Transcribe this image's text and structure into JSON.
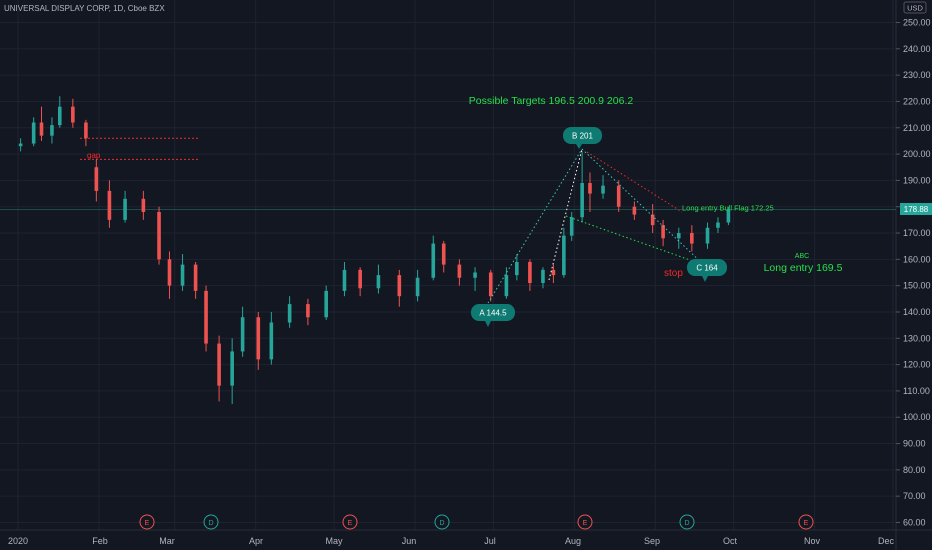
{
  "header": {
    "symbol_title": "UNIVERSAL DISPLAY CORP, 1D, Cboe BZX",
    "currency_label": "USD"
  },
  "price_axis": {
    "ticks": [
      "250.00",
      "240.00",
      "230.00",
      "220.00",
      "210.00",
      "200.00",
      "190.00",
      "180.00",
      "170.00",
      "160.00",
      "150.00",
      "140.00",
      "130.00",
      "120.00",
      "110.00",
      "100.00",
      "90.00",
      "80.00",
      "70.00",
      "60.00"
    ],
    "last_price_label": "178.88",
    "last_price": 178.88
  },
  "time_axis": {
    "labels": [
      "2020",
      "Feb",
      "Mar",
      "Apr",
      "May",
      "Jun",
      "Jul",
      "Aug",
      "Sep",
      "Oct",
      "Nov",
      "Dec"
    ]
  },
  "events": [
    {
      "letter": "E",
      "type": "earnings",
      "month": "Feb"
    },
    {
      "letter": "D",
      "type": "dividend",
      "month": "Mar"
    },
    {
      "letter": "E",
      "type": "earnings",
      "month": "May"
    },
    {
      "letter": "D",
      "type": "dividend",
      "month": "Jun"
    },
    {
      "letter": "E",
      "type": "earnings",
      "month": "Aug"
    },
    {
      "letter": "D",
      "type": "dividend",
      "month": "Sep"
    },
    {
      "letter": "E",
      "type": "earnings",
      "month": "Nov"
    }
  ],
  "annotations": {
    "targets_text": "Possible Targets  196.5  200.9  206.2",
    "gap_label": "gap",
    "point_a": "A 144.5",
    "point_b": "B 201",
    "point_c": "C  164",
    "stop_label": "stop",
    "bull_flag_label": "Long entry Bull Flag  172.25",
    "abc_label": "ABC",
    "long_entry_label": "Long entry 169.5"
  },
  "colors": {
    "background": "#131722",
    "up": "#26a69a",
    "down": "#ef5350",
    "annotation_green": "#26e04a",
    "annotation_red": "#ef2b2b",
    "callout_teal": "#0e7a72",
    "dotted_teal": "#3ec6c0"
  },
  "chart_data": {
    "type": "candlestick",
    "title": "UNIVERSAL DISPLAY CORP, 1D, Cboe BZX",
    "ylim": [
      57,
      255
    ],
    "y_unit": "USD",
    "x_range": [
      "2020-01-01",
      "2020-12-06"
    ],
    "candles": [
      {
        "date": "2020-01-02",
        "o": 203,
        "h": 206,
        "l": 201,
        "c": 204
      },
      {
        "date": "2020-01-07",
        "o": 204,
        "h": 214,
        "l": 203,
        "c": 212
      },
      {
        "date": "2020-01-10",
        "o": 212,
        "h": 218,
        "l": 205,
        "c": 207
      },
      {
        "date": "2020-01-14",
        "o": 207,
        "h": 214,
        "l": 204,
        "c": 211
      },
      {
        "date": "2020-01-17",
        "o": 211,
        "h": 222,
        "l": 210,
        "c": 218
      },
      {
        "date": "2020-01-22",
        "o": 218,
        "h": 221,
        "l": 210,
        "c": 212
      },
      {
        "date": "2020-01-27",
        "o": 212,
        "h": 213,
        "l": 203,
        "c": 206
      },
      {
        "date": "2020-01-31",
        "o": 195,
        "h": 198,
        "l": 182,
        "c": 186
      },
      {
        "date": "2020-02-05",
        "o": 186,
        "h": 190,
        "l": 172,
        "c": 175
      },
      {
        "date": "2020-02-11",
        "o": 175,
        "h": 186,
        "l": 174,
        "c": 183
      },
      {
        "date": "2020-02-18",
        "o": 183,
        "h": 186,
        "l": 175,
        "c": 178
      },
      {
        "date": "2020-02-24",
        "o": 178,
        "h": 180,
        "l": 158,
        "c": 160
      },
      {
        "date": "2020-02-28",
        "o": 160,
        "h": 163,
        "l": 145,
        "c": 150
      },
      {
        "date": "2020-03-04",
        "o": 150,
        "h": 162,
        "l": 148,
        "c": 158
      },
      {
        "date": "2020-03-09",
        "o": 158,
        "h": 159,
        "l": 145,
        "c": 148
      },
      {
        "date": "2020-03-13",
        "o": 148,
        "h": 150,
        "l": 125,
        "c": 128
      },
      {
        "date": "2020-03-18",
        "o": 128,
        "h": 131,
        "l": 106,
        "c": 112
      },
      {
        "date": "2020-03-23",
        "o": 112,
        "h": 130,
        "l": 105,
        "c": 125
      },
      {
        "date": "2020-03-27",
        "o": 125,
        "h": 142,
        "l": 123,
        "c": 138
      },
      {
        "date": "2020-04-02",
        "o": 138,
        "h": 140,
        "l": 118,
        "c": 122
      },
      {
        "date": "2020-04-07",
        "o": 122,
        "h": 140,
        "l": 120,
        "c": 136
      },
      {
        "date": "2020-04-14",
        "o": 136,
        "h": 146,
        "l": 134,
        "c": 143
      },
      {
        "date": "2020-04-21",
        "o": 143,
        "h": 145,
        "l": 135,
        "c": 138
      },
      {
        "date": "2020-04-28",
        "o": 138,
        "h": 150,
        "l": 137,
        "c": 148
      },
      {
        "date": "2020-05-05",
        "o": 148,
        "h": 159,
        "l": 146,
        "c": 156
      },
      {
        "date": "2020-05-11",
        "o": 156,
        "h": 157,
        "l": 146,
        "c": 149
      },
      {
        "date": "2020-05-18",
        "o": 149,
        "h": 158,
        "l": 147,
        "c": 154
      },
      {
        "date": "2020-05-26",
        "o": 154,
        "h": 156,
        "l": 142,
        "c": 146
      },
      {
        "date": "2020-06-02",
        "o": 146,
        "h": 156,
        "l": 144,
        "c": 153
      },
      {
        "date": "2020-06-08",
        "o": 153,
        "h": 169,
        "l": 152,
        "c": 166
      },
      {
        "date": "2020-06-12",
        "o": 166,
        "h": 167,
        "l": 155,
        "c": 158
      },
      {
        "date": "2020-06-18",
        "o": 158,
        "h": 160,
        "l": 150,
        "c": 153
      },
      {
        "date": "2020-06-24",
        "o": 153,
        "h": 157,
        "l": 148,
        "c": 155
      },
      {
        "date": "2020-06-30",
        "o": 155,
        "h": 156,
        "l": 144,
        "c": 146
      },
      {
        "date": "2020-07-06",
        "o": 146,
        "h": 157,
        "l": 145,
        "c": 154
      },
      {
        "date": "2020-07-10",
        "o": 154,
        "h": 162,
        "l": 152,
        "c": 159
      },
      {
        "date": "2020-07-15",
        "o": 159,
        "h": 160,
        "l": 148,
        "c": 151
      },
      {
        "date": "2020-07-20",
        "o": 151,
        "h": 157,
        "l": 149,
        "c": 156
      },
      {
        "date": "2020-07-24",
        "o": 156,
        "h": 158,
        "l": 151,
        "c": 154
      },
      {
        "date": "2020-07-28",
        "o": 154,
        "h": 172,
        "l": 153,
        "c": 169
      },
      {
        "date": "2020-07-31",
        "o": 169,
        "h": 178,
        "l": 167,
        "c": 176
      },
      {
        "date": "2020-08-04",
        "o": 176,
        "h": 201,
        "l": 174,
        "c": 189
      },
      {
        "date": "2020-08-07",
        "o": 189,
        "h": 193,
        "l": 178,
        "c": 185
      },
      {
        "date": "2020-08-12",
        "o": 185,
        "h": 192,
        "l": 183,
        "c": 188
      },
      {
        "date": "2020-08-18",
        "o": 188,
        "h": 190,
        "l": 178,
        "c": 180
      },
      {
        "date": "2020-08-24",
        "o": 180,
        "h": 182,
        "l": 175,
        "c": 177
      },
      {
        "date": "2020-08-31",
        "o": 177,
        "h": 181,
        "l": 170,
        "c": 173
      },
      {
        "date": "2020-09-04",
        "o": 173,
        "h": 175,
        "l": 165,
        "c": 168
      },
      {
        "date": "2020-09-10",
        "o": 168,
        "h": 172,
        "l": 164,
        "c": 170
      },
      {
        "date": "2020-09-15",
        "o": 170,
        "h": 173,
        "l": 163,
        "c": 166
      },
      {
        "date": "2020-09-21",
        "o": 166,
        "h": 174,
        "l": 164,
        "c": 172
      },
      {
        "date": "2020-09-25",
        "o": 172,
        "h": 176,
        "l": 170,
        "c": 174
      },
      {
        "date": "2020-09-29",
        "o": 174,
        "h": 180,
        "l": 173,
        "c": 179
      }
    ],
    "resistance_levels": [
      206,
      198
    ],
    "abc_pattern": {
      "A": 144.5,
      "B": 201,
      "C": 164
    }
  }
}
